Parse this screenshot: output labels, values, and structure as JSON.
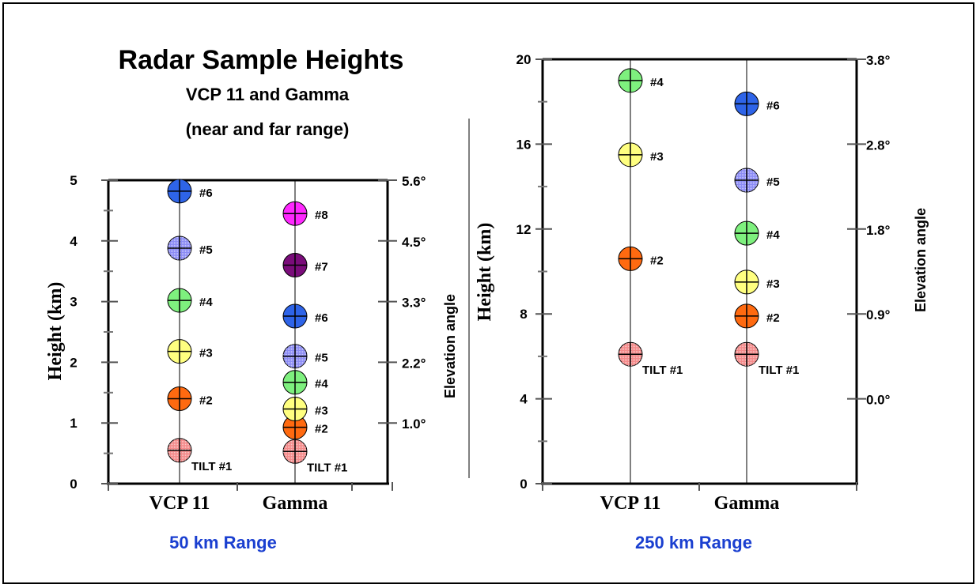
{
  "header": {
    "title": "Radar Sample Heights",
    "subtitle_line1": "VCP 11 and Gamma",
    "subtitle_line2": "(near and far range)"
  },
  "colors": {
    "range_label": "#1a3fd0",
    "tilt_1": "#f48a8a",
    "tilt_2": "#ff6a10",
    "tilt_3": "#ffff80",
    "tilt_4": "#7ef07e",
    "tilt_5": "#8c8cf5",
    "tilt_6": "#2e64e8",
    "tilt_7": "#7a0c7a",
    "tilt_8": "#ff28ff"
  },
  "chart_data": [
    {
      "type": "scatter",
      "range_label": "50 km Range",
      "categories": [
        "VCP 11",
        "Gamma"
      ],
      "ylabel": "Height (km)",
      "right_label": "Elevation angle",
      "ylim": [
        0,
        5
      ],
      "y_ticks": [
        "0",
        "1",
        "2",
        "3",
        "4",
        "5"
      ],
      "right_ticks": [
        {
          "label": "1.0°",
          "y": 1.0
        },
        {
          "label": "2.2°",
          "y": 2.0
        },
        {
          "label": "3.3°",
          "y": 3.0
        },
        {
          "label": "4.5°",
          "y": 4.0
        },
        {
          "label": "5.6°",
          "y": 5.0
        }
      ],
      "series": [
        {
          "name": "VCP 11",
          "points": [
            {
              "label": "TILT #1",
              "tilt": 1,
              "height": 0.55
            },
            {
              "label": "#2",
              "tilt": 2,
              "height": 1.4
            },
            {
              "label": "#3",
              "tilt": 3,
              "height": 2.18
            },
            {
              "label": "#4",
              "tilt": 4,
              "height": 3.02
            },
            {
              "label": "#5",
              "tilt": 5,
              "height": 3.88
            },
            {
              "label": "#6",
              "tilt": 6,
              "height": 4.82
            }
          ]
        },
        {
          "name": "Gamma",
          "points": [
            {
              "label": "TILT #1",
              "tilt": 1,
              "height": 0.53
            },
            {
              "label": "#2",
              "tilt": 2,
              "height": 0.93
            },
            {
              "label": "#3",
              "tilt": 3,
              "height": 1.23
            },
            {
              "label": "#4",
              "tilt": 4,
              "height": 1.67
            },
            {
              "label": "#5",
              "tilt": 5,
              "height": 2.1
            },
            {
              "label": "#6",
              "tilt": 6,
              "height": 2.76
            },
            {
              "label": "#7",
              "tilt": 7,
              "height": 3.6
            },
            {
              "label": "#8",
              "tilt": 8,
              "height": 4.45
            }
          ]
        }
      ]
    },
    {
      "type": "scatter",
      "range_label": "250 km Range",
      "categories": [
        "VCP 11",
        "Gamma"
      ],
      "ylabel": "Height (km)",
      "right_label": "Elevation angle",
      "ylim": [
        0,
        20
      ],
      "y_ticks": [
        "0",
        "4",
        "8",
        "12",
        "16",
        "20"
      ],
      "right_ticks": [
        {
          "label": "0.0°",
          "y": 4
        },
        {
          "label": "0.9°",
          "y": 8
        },
        {
          "label": "1.8°",
          "y": 12
        },
        {
          "label": "2.8°",
          "y": 16
        },
        {
          "label": "3.8°",
          "y": 20
        }
      ],
      "series": [
        {
          "name": "VCP 11",
          "points": [
            {
              "label": "TILT #1",
              "tilt": 1,
              "height": 6.1
            },
            {
              "label": "#2",
              "tilt": 2,
              "height": 10.6
            },
            {
              "label": "#3",
              "tilt": 3,
              "height": 15.5
            },
            {
              "label": "#4",
              "tilt": 4,
              "height": 19.0
            }
          ]
        },
        {
          "name": "Gamma",
          "points": [
            {
              "label": "TILT #1",
              "tilt": 1,
              "height": 6.1
            },
            {
              "label": "#2",
              "tilt": 2,
              "height": 7.9
            },
            {
              "label": "#3",
              "tilt": 3,
              "height": 9.5
            },
            {
              "label": "#4",
              "tilt": 4,
              "height": 11.8
            },
            {
              "label": "#5",
              "tilt": 5,
              "height": 14.3
            },
            {
              "label": "#6",
              "tilt": 6,
              "height": 17.9
            }
          ]
        }
      ]
    }
  ]
}
